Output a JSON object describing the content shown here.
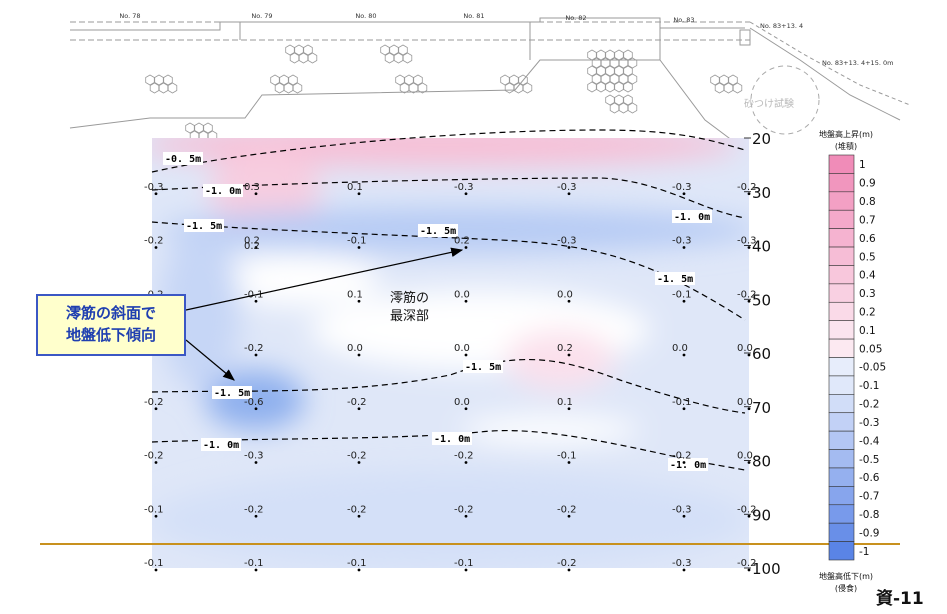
{
  "page_number": "資-11",
  "callout": {
    "line1": "澪筋の斜面で",
    "line2": "地盤低下傾向"
  },
  "deepest_label": {
    "line1": "澪筋の",
    "line2": "最深部"
  },
  "sketch": {
    "stations": [
      "No. 78",
      "No. 79",
      "No. 80",
      "No. 81",
      "No. 82",
      "No. 83",
      "No. 83+13. 4",
      "No. 83+13. 4+15. 0m"
    ],
    "test_label": "砂つけ試験"
  },
  "colors": {
    "rise": "#f08cb8",
    "fall": "#5a84e6",
    "road": "#c8911e",
    "callout_border": "#3b57c4",
    "callout_fill": "#ffffcc"
  },
  "chart_data": {
    "type": "heatmap",
    "title": "",
    "xlabel": "",
    "ylabel": "",
    "y_axis": {
      "ticks": [
        20,
        30,
        40,
        50,
        60,
        70,
        80,
        90,
        100
      ],
      "ylim": [
        20,
        100
      ],
      "inverted": true
    },
    "columns": 7,
    "value_rows": [
      {
        "y": 30,
        "values": [
          "-0.3",
          "0.3",
          "0.1",
          "-0.3",
          "-0.3",
          "-0.3",
          "-0.2"
        ]
      },
      {
        "y": 40,
        "values": [
          "-0.2",
          "0.2",
          "-0.1",
          "0.2",
          "-0.3",
          "-0.3",
          "-0.3"
        ]
      },
      {
        "y": 50,
        "values": [
          "-0.2",
          "-0.1",
          "0.1",
          "0.0",
          "0.0",
          "-0.1",
          "-0.2"
        ]
      },
      {
        "y": 60,
        "values": [
          "",
          "-0.2",
          "0.0",
          "0.0",
          "0.2",
          "0.0",
          "0.0"
        ]
      },
      {
        "y": 70,
        "values": [
          "-0.2",
          "-0.6",
          "-0.2",
          "0.0",
          "0.1",
          "-0.1",
          "0.0"
        ]
      },
      {
        "y": 80,
        "values": [
          "-0.2",
          "-0.3",
          "-0.2",
          "-0.2",
          "-0.1",
          "-0.2",
          "0.0"
        ]
      },
      {
        "y": 90,
        "values": [
          "-0.1",
          "-0.2",
          "-0.2",
          "-0.2",
          "-0.2",
          "-0.3",
          "-0.2"
        ]
      },
      {
        "y": 100,
        "values": [
          "-0.1",
          "-0.1",
          "-0.1",
          "-0.1",
          "-0.2",
          "-0.3",
          "-0.2"
        ]
      }
    ],
    "extra_values": [
      {
        "x": 1,
        "y": 41,
        "value": "0.2"
      }
    ],
    "contour_labels": [
      "-0. 5m",
      "-1. 0m",
      "-1. 5m",
      "-1. 5m",
      "-1. 0m",
      "-1. 5m",
      "-1. 5m",
      "-1. 5m",
      "-1. 0m",
      "-1. 0m",
      "-1. 0m"
    ],
    "legend": {
      "title_top": "地盤高上昇(m)",
      "subtitle_top": "(堆積)",
      "title_bottom": "地盤高低下(m)",
      "subtitle_bottom": "(侵食)",
      "levels": [
        "1",
        "0.9",
        "0.8",
        "0.7",
        "0.6",
        "0.5",
        "0.4",
        "0.3",
        "0.2",
        "0.1",
        "0.05",
        "-0.05",
        "-0.1",
        "-0.2",
        "-0.3",
        "-0.4",
        "-0.5",
        "-0.6",
        "-0.7",
        "-0.8",
        "-0.9",
        "-1"
      ]
    }
  }
}
